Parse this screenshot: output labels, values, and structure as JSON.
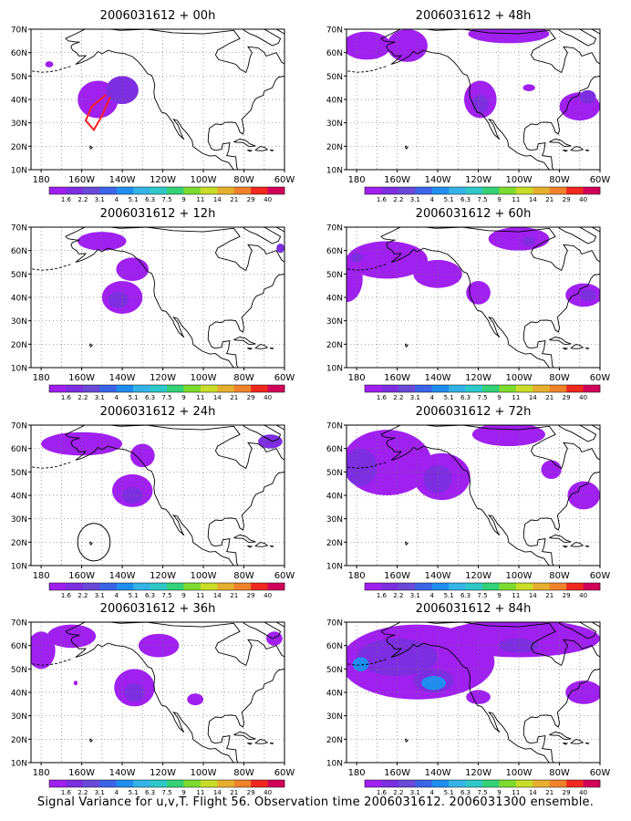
{
  "figure": {
    "caption": "Signal Variance for u,v,T. Flight 56. Observation time 2006031612. 2006031300 ensemble."
  },
  "colors": {
    "fill_bins": [
      "#a020f0",
      "#7d2ee0",
      "#6a48d8",
      "#3c64e8",
      "#1f8ef0",
      "#34b4e6",
      "#2ec8c8",
      "#33d277",
      "#7ddb2e",
      "#c8dc28",
      "#e6af2d",
      "#f0822b",
      "#f0281e",
      "#d2005a"
    ],
    "map_frame": "#000000",
    "grid_dots": "#777777"
  },
  "chart_data": [
    {
      "type": "heatmap",
      "title": "2006031612 + 00h",
      "x_tick_labels": [
        "180",
        "160W",
        "140W",
        "120W",
        "100W",
        "80W",
        "60W"
      ],
      "y_tick_labels": [
        "70N",
        "60N",
        "50N",
        "40N",
        "30N",
        "20N",
        "10N"
      ],
      "xlim": [
        -185,
        -60
      ],
      "ylim": [
        10,
        70
      ],
      "grid": true,
      "colorbar_labels": [
        "1.6",
        "2.2",
        "3.1",
        "4",
        "5.1",
        "6.3",
        "7.5",
        "9",
        "11",
        "14",
        "21",
        "29",
        "40"
      ],
      "fields": [
        {
          "lon": -152,
          "lat": 40,
          "rlon": 10,
          "rlat": 8,
          "level": 0
        },
        {
          "lon": -140,
          "lat": 44,
          "rlon": 8,
          "rlat": 6,
          "level": 1
        },
        {
          "lon": -176,
          "lat": 55,
          "rlon": 2,
          "rlat": 1.3,
          "level": 0
        }
      ],
      "tracks": [
        [
          [
            -148,
            42
          ],
          [
            -155,
            37
          ],
          [
            -158,
            31
          ],
          [
            -154,
            27
          ],
          [
            -150,
            33
          ],
          [
            -146,
            41
          ]
        ]
      ],
      "circles": []
    },
    {
      "type": "heatmap",
      "title": "2006031612 + 12h",
      "x_tick_labels": [
        "180",
        "160W",
        "140W",
        "120W",
        "100W",
        "80W",
        "60W"
      ],
      "y_tick_labels": [
        "70N",
        "60N",
        "50N",
        "40N",
        "30N",
        "20N",
        "10N"
      ],
      "xlim": [
        -185,
        -60
      ],
      "ylim": [
        10,
        70
      ],
      "grid": true,
      "colorbar_labels": [
        "1.6",
        "2.2",
        "3.1",
        "4",
        "5.1",
        "6.3",
        "7.5",
        "9",
        "11",
        "14",
        "21",
        "29",
        "40"
      ],
      "fields": [
        {
          "lon": -140,
          "lat": 40,
          "rlon": 10,
          "rlat": 7,
          "level": 0
        },
        {
          "lon": -142,
          "lat": 39,
          "rlon": 5,
          "rlat": 3.5,
          "level": 1
        },
        {
          "lon": -135,
          "lat": 52,
          "rlon": 8,
          "rlat": 5,
          "level": 0
        },
        {
          "lon": -150,
          "lat": 64,
          "rlon": 12,
          "rlat": 4,
          "level": 0
        },
        {
          "lon": -62,
          "lat": 61,
          "rlon": 2,
          "rlat": 2,
          "level": 1
        }
      ],
      "tracks": [],
      "circles": []
    },
    {
      "type": "heatmap",
      "title": "2006031612 + 24h",
      "x_tick_labels": [
        "180",
        "160W",
        "140W",
        "120W",
        "100W",
        "80W",
        "60W"
      ],
      "y_tick_labels": [
        "70N",
        "60N",
        "50N",
        "40N",
        "30N",
        "20N",
        "10N"
      ],
      "xlim": [
        -185,
        -60
      ],
      "ylim": [
        10,
        70
      ],
      "grid": true,
      "colorbar_labels": [
        "1.6",
        "2.2",
        "3.1",
        "4",
        "5.1",
        "6.3",
        "7.5",
        "9",
        "11",
        "14",
        "21",
        "29",
        "40"
      ],
      "fields": [
        {
          "lon": -135,
          "lat": 42,
          "rlon": 10,
          "rlat": 7,
          "level": 0
        },
        {
          "lon": -135,
          "lat": 40,
          "rlon": 5,
          "rlat": 3.5,
          "level": 1
        },
        {
          "lon": -160,
          "lat": 62,
          "rlon": 20,
          "rlat": 5,
          "level": 0
        },
        {
          "lon": -130,
          "lat": 57,
          "rlon": 6,
          "rlat": 5,
          "level": 0
        },
        {
          "lon": -67,
          "lat": 63,
          "rlon": 6,
          "rlat": 3,
          "level": 1
        }
      ],
      "tracks": [],
      "circles": [
        {
          "lon": -154,
          "lat": 20,
          "rlon": 8,
          "rlat": 8
        }
      ]
    },
    {
      "type": "heatmap",
      "title": "2006031612 + 36h",
      "x_tick_labels": [
        "180",
        "160W",
        "140W",
        "120W",
        "100W",
        "80W",
        "60W"
      ],
      "y_tick_labels": [
        "70N",
        "60N",
        "50N",
        "40N",
        "30N",
        "20N",
        "10N"
      ],
      "xlim": [
        -185,
        -60
      ],
      "ylim": [
        10,
        70
      ],
      "grid": true,
      "colorbar_labels": [
        "1.6",
        "2.2",
        "3.1",
        "4",
        "5.1",
        "6.3",
        "7.5",
        "9",
        "11",
        "14",
        "21",
        "29",
        "40"
      ],
      "fields": [
        {
          "lon": -134,
          "lat": 42,
          "rlon": 10,
          "rlat": 8,
          "level": 0
        },
        {
          "lon": -134,
          "lat": 40,
          "rlon": 5,
          "rlat": 4,
          "level": 1
        },
        {
          "lon": -180,
          "lat": 58,
          "rlon": 7,
          "rlat": 8,
          "level": 0
        },
        {
          "lon": -165,
          "lat": 64,
          "rlon": 12,
          "rlat": 5,
          "level": 0
        },
        {
          "lon": -122,
          "lat": 60,
          "rlon": 10,
          "rlat": 5,
          "level": 0
        },
        {
          "lon": -65,
          "lat": 63,
          "rlon": 4,
          "rlat": 3,
          "level": 0
        },
        {
          "lon": -104,
          "lat": 37,
          "rlon": 4,
          "rlat": 2.5,
          "level": 0
        },
        {
          "lon": -163,
          "lat": 44,
          "rlon": 1,
          "rlat": 1,
          "level": 0
        }
      ],
      "tracks": [],
      "circles": []
    },
    {
      "type": "heatmap",
      "title": "2006031612 + 48h",
      "x_tick_labels": [
        "180",
        "160W",
        "140W",
        "120W",
        "100W",
        "80W",
        "60W"
      ],
      "y_tick_labels": [
        "70N",
        "60N",
        "50N",
        "40N",
        "30N",
        "20N",
        "10N"
      ],
      "xlim": [
        -185,
        -60
      ],
      "ylim": [
        10,
        70
      ],
      "grid": true,
      "colorbar_labels": [
        "1.6",
        "2.2",
        "3.1",
        "4",
        "5.1",
        "6.3",
        "7.5",
        "9",
        "11",
        "14",
        "21",
        "29",
        "40"
      ],
      "fields": [
        {
          "lon": -175,
          "lat": 63,
          "rlon": 12,
          "rlat": 6,
          "level": 0
        },
        {
          "lon": -155,
          "lat": 63,
          "rlon": 10,
          "rlat": 7,
          "level": 0
        },
        {
          "lon": -105,
          "lat": 68,
          "rlon": 20,
          "rlat": 4,
          "level": 0
        },
        {
          "lon": -119,
          "lat": 40,
          "rlon": 8,
          "rlat": 8,
          "level": 0
        },
        {
          "lon": -119,
          "lat": 38,
          "rlon": 4,
          "rlat": 4,
          "level": 1
        },
        {
          "lon": -70,
          "lat": 37,
          "rlon": 10,
          "rlat": 6,
          "level": 0
        },
        {
          "lon": -66,
          "lat": 41,
          "rlon": 4,
          "rlat": 3,
          "level": 1
        },
        {
          "lon": -95,
          "lat": 45,
          "rlon": 3,
          "rlat": 1.5,
          "level": 0
        }
      ],
      "tracks": [],
      "circles": []
    },
    {
      "type": "heatmap",
      "title": "2006031612 + 60h",
      "x_tick_labels": [
        "180",
        "160W",
        "140W",
        "120W",
        "100W",
        "80W",
        "60W"
      ],
      "y_tick_labels": [
        "70N",
        "60N",
        "50N",
        "40N",
        "30N",
        "20N",
        "10N"
      ],
      "xlim": [
        -185,
        -60
      ],
      "ylim": [
        10,
        70
      ],
      "grid": true,
      "colorbar_labels": [
        "1.6",
        "2.2",
        "3.1",
        "4",
        "5.1",
        "6.3",
        "7.5",
        "9",
        "11",
        "14",
        "21",
        "29",
        "40"
      ],
      "fields": [
        {
          "lon": -165,
          "lat": 56,
          "rlon": 20,
          "rlat": 8,
          "level": 0
        },
        {
          "lon": -185,
          "lat": 48,
          "rlon": 8,
          "rlat": 10,
          "level": 0
        },
        {
          "lon": -180,
          "lat": 57,
          "rlon": 3,
          "rlat": 2,
          "level": 1
        },
        {
          "lon": -140,
          "lat": 50,
          "rlon": 12,
          "rlat": 6,
          "level": 0
        },
        {
          "lon": -120,
          "lat": 42,
          "rlon": 6,
          "rlat": 5,
          "level": 0
        },
        {
          "lon": -100,
          "lat": 65,
          "rlon": 15,
          "rlat": 5,
          "level": 0
        },
        {
          "lon": -95,
          "lat": 64,
          "rlon": 3,
          "rlat": 2,
          "level": 1
        },
        {
          "lon": -68,
          "lat": 41,
          "rlon": 9,
          "rlat": 5,
          "level": 0
        },
        {
          "lon": -66,
          "lat": 41,
          "rlon": 4,
          "rlat": 2.5,
          "level": 1
        }
      ],
      "tracks": [],
      "circles": []
    },
    {
      "type": "heatmap",
      "title": "2006031612 + 72h",
      "x_tick_labels": [
        "180",
        "160W",
        "140W",
        "120W",
        "100W",
        "80W",
        "60W"
      ],
      "y_tick_labels": [
        "70N",
        "60N",
        "50N",
        "40N",
        "30N",
        "20N",
        "10N"
      ],
      "xlim": [
        -185,
        -60
      ],
      "ylim": [
        10,
        70
      ],
      "grid": true,
      "colorbar_labels": [
        "1.6",
        "2.2",
        "3.1",
        "4",
        "5.1",
        "6.3",
        "7.5",
        "9",
        "11",
        "14",
        "21",
        "29",
        "40"
      ],
      "fields": [
        {
          "lon": -165,
          "lat": 54,
          "rlon": 22,
          "rlat": 14,
          "level": 0
        },
        {
          "lon": -178,
          "lat": 52,
          "rlon": 8,
          "rlat": 8,
          "level": 1
        },
        {
          "lon": -138,
          "lat": 48,
          "rlon": 14,
          "rlat": 10,
          "level": 0
        },
        {
          "lon": -140,
          "lat": 47,
          "rlon": 7,
          "rlat": 6,
          "level": 1
        },
        {
          "lon": -105,
          "lat": 66,
          "rlon": 18,
          "rlat": 5,
          "level": 0
        },
        {
          "lon": -68,
          "lat": 40,
          "rlon": 8,
          "rlat": 6,
          "level": 0
        },
        {
          "lon": -84,
          "lat": 51,
          "rlon": 5,
          "rlat": 4,
          "level": 0
        }
      ],
      "tracks": [],
      "circles": []
    },
    {
      "type": "heatmap",
      "title": "2006031612 + 84h",
      "x_tick_labels": [
        "180",
        "160W",
        "140W",
        "120W",
        "100W",
        "80W",
        "60W"
      ],
      "y_tick_labels": [
        "70N",
        "60N",
        "50N",
        "40N",
        "30N",
        "20N",
        "10N"
      ],
      "xlim": [
        -185,
        -60
      ],
      "ylim": [
        10,
        70
      ],
      "grid": true,
      "colorbar_labels": [
        "1.6",
        "2.2",
        "3.1",
        "4",
        "5.1",
        "6.3",
        "7.5",
        "9",
        "11",
        "14",
        "21",
        "29",
        "40"
      ],
      "fields": [
        {
          "lon": -150,
          "lat": 53,
          "rlon": 38,
          "rlat": 16,
          "level": 0
        },
        {
          "lon": -100,
          "lat": 63,
          "rlon": 40,
          "rlat": 8,
          "level": 0
        },
        {
          "lon": -160,
          "lat": 55,
          "rlon": 20,
          "rlat": 8,
          "level": 1
        },
        {
          "lon": -178,
          "lat": 52,
          "rlon": 4,
          "rlat": 3,
          "level": 4
        },
        {
          "lon": -142,
          "lat": 45,
          "rlon": 10,
          "rlat": 5,
          "level": 1
        },
        {
          "lon": -142,
          "lat": 44,
          "rlon": 6,
          "rlat": 3,
          "level": 4
        },
        {
          "lon": -120,
          "lat": 38,
          "rlon": 6,
          "rlat": 3,
          "level": 0
        },
        {
          "lon": -68,
          "lat": 40,
          "rlon": 9,
          "rlat": 5,
          "level": 0
        },
        {
          "lon": -100,
          "lat": 60,
          "rlon": 10,
          "rlat": 3,
          "level": 1
        }
      ],
      "tracks": [],
      "circles": []
    }
  ]
}
